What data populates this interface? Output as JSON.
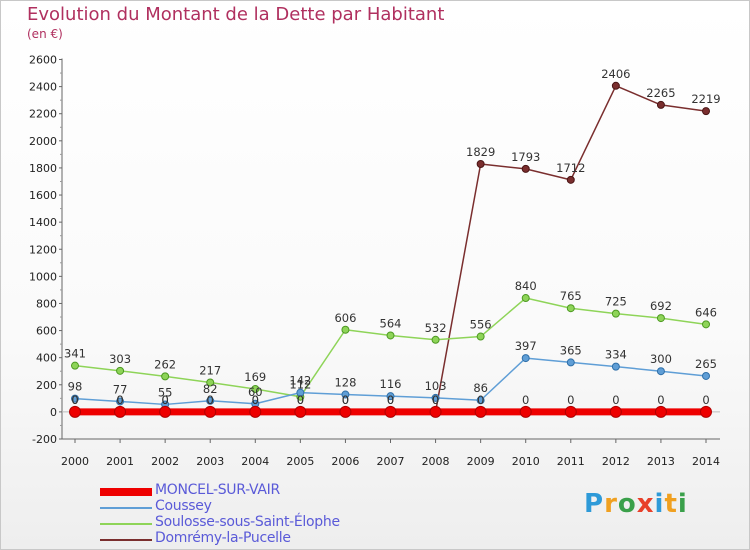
{
  "title": "Evolution du Montant de la Dette par Habitant",
  "subtitle": "(en €)",
  "logo": [
    "P",
    "r",
    "o",
    "x",
    "i",
    "t",
    "i"
  ],
  "logo_colors": [
    "#2e9ad8",
    "#f0a020",
    "#3aa04a",
    "#e8402a",
    "#2e9ad8",
    "#f0a020",
    "#3aa04a"
  ],
  "chart_data": {
    "type": "line",
    "x": [
      "2000",
      "2001",
      "2002",
      "2003",
      "2004",
      "2005",
      "2006",
      "2007",
      "2008",
      "2009",
      "2010",
      "2011",
      "2012",
      "2013",
      "2014"
    ],
    "ylim": [
      -200,
      2600
    ],
    "yticks": [
      -200,
      0,
      200,
      400,
      600,
      800,
      1000,
      1200,
      1400,
      1600,
      1800,
      2000,
      2200,
      2400,
      2600
    ],
    "grid": false,
    "legend": "bottom",
    "series": [
      {
        "name": "MONCEL-SUR-VAIR",
        "color": "#ee0000",
        "values": [
          0,
          0,
          0,
          0,
          0,
          0,
          0,
          0,
          0,
          0,
          0,
          0,
          0,
          0,
          0
        ],
        "labels": [
          "0",
          "0",
          "0",
          "0",
          "0",
          "0",
          "0",
          "0",
          "0",
          "0",
          "0",
          "0",
          "0",
          "0",
          "0"
        ]
      },
      {
        "name": "Coussey",
        "color": "#5f9ed6",
        "values": [
          98,
          77,
          55,
          82,
          60,
          142,
          128,
          116,
          103,
          86,
          397,
          365,
          334,
          300,
          265
        ],
        "labels": [
          "98",
          "77",
          "55",
          "82",
          "60",
          "142",
          "128",
          "116",
          "103",
          "86",
          "397",
          "365",
          "334",
          "300",
          "265"
        ]
      },
      {
        "name": "Soulosse-sous-Saint-Élophe",
        "color": "#8ed458",
        "values": [
          341,
          303,
          262,
          217,
          169,
          112,
          606,
          564,
          532,
          556,
          840,
          765,
          725,
          692,
          646
        ],
        "labels": [
          "341",
          "303",
          "262",
          "217",
          "169",
          "112",
          "606",
          "564",
          "532",
          "556",
          "840",
          "765",
          "725",
          "692",
          "646"
        ]
      },
      {
        "name": "Domrémy-la-Pucelle",
        "color": "#7a2e2e",
        "values": [
          0,
          0,
          0,
          0,
          0,
          0,
          0,
          0,
          0,
          1829,
          1793,
          1712,
          2406,
          2265,
          2219
        ],
        "labels": [
          "0",
          "0",
          "0",
          "0",
          "0",
          "0",
          "0",
          "0",
          "0",
          "1829",
          "1793",
          "1712",
          "2406",
          "2265",
          "2219"
        ]
      }
    ]
  }
}
